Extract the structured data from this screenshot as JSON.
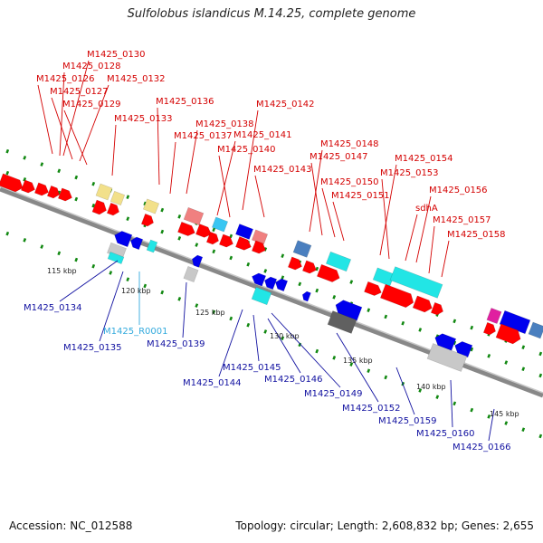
{
  "title": "Sulfolobus islandicus M.14.25, complete genome",
  "footer": {
    "accession": "Accession: NC_012588",
    "topology": "Topology: circular; Length: 2,608,832 bp; Genes: 2,655"
  },
  "colors": {
    "upper_label": "#d40000",
    "lower_label": "#1010a0",
    "rna_label": "#33aadd",
    "strand_pos": "#ff0000",
    "strand_neg": "#0000ee",
    "rna": "#22e5e5",
    "tick": "#118811"
  },
  "scale_ticks": [
    "115 kbp",
    "120 kbp",
    "125 kbp",
    "130 kbp",
    "135 kbp",
    "140 kbp",
    "145 kbp"
  ],
  "upper_labels": [
    "M1425_0130",
    "M1425_0128",
    "M1425_0126",
    "M1425_0132",
    "M1425_0127",
    "M1425_0129",
    "M1425_0136",
    "M1425_0133",
    "M1425_0142",
    "M1425_0138",
    "M1425_0137",
    "M1425_0141",
    "M1425_0140",
    "M1425_0148",
    "M1425_0147",
    "M1425_0143",
    "M1425_0154",
    "M1425_0153",
    "M1425_0150",
    "M1425_0151",
    "M1425_0156",
    "sdhA",
    "M1425_0157",
    "M1425_0158"
  ],
  "lower_labels": [
    "M1425_0134",
    "M1425_R0001",
    "M1425_0135",
    "M1425_0139",
    "M1425_0145",
    "M1425_0144",
    "M1425_0146",
    "M1425_0149",
    "M1425_0152",
    "M1425_0159",
    "M1425_0160",
    "M1425_0166"
  ]
}
